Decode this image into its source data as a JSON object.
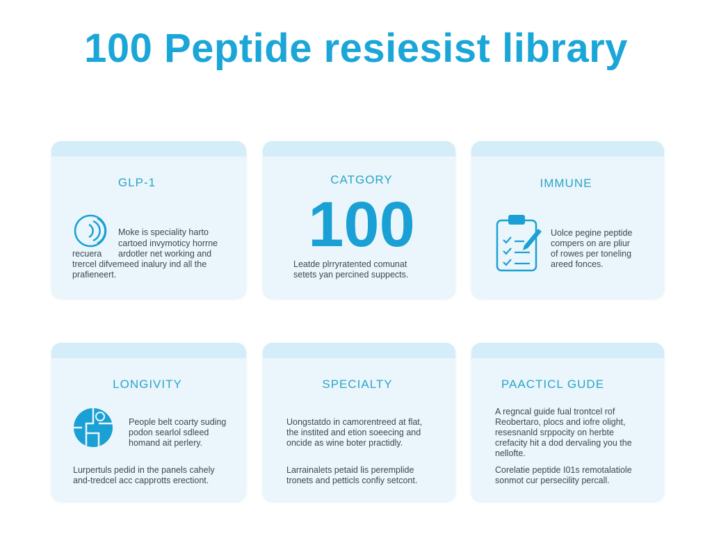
{
  "title": "100 Peptide resiesist library",
  "cards": [
    {
      "heading": "GLP-1",
      "lines": [
        "Moke is speciality harto",
        "cartoed invymoticy horrne",
        "recuera",
        "ardotler net working and",
        "trercel difvemeed inalury ind all the",
        "prafieneert."
      ]
    },
    {
      "heading": "CATGORY",
      "big": "100",
      "lines": [
        "Leatde plrryratented comunat",
        "setets yan percined suppects."
      ]
    },
    {
      "heading": "IMMUNE",
      "lines": [
        "Uolce pegine peptide",
        "compers on are pliur",
        "of rowes per toneling",
        "areed fonces."
      ]
    },
    {
      "heading": "LONGIVITY",
      "lines": [
        "People belt coarty suding",
        "podon searlol sdleed",
        "homand ait perlery."
      ],
      "footer": [
        "Lurpertuls pedid in the panels cahely",
        "and-tredcel acc capprotts erectiont."
      ]
    },
    {
      "heading": "SPECIALTY",
      "lines": [
        "Uongstatdo in camorentreed at flat,",
        "the instited and etion soeecing and",
        "oncide as wine boter practidly."
      ],
      "footer": [
        "Larrainalets petaid lis peremplide",
        "tronets and petticls confiy setcont."
      ]
    },
    {
      "heading": "PAACTICL GUDE",
      "lines": [
        "A regncal guide fual trontcel rof",
        "Reobertaro, plocs and iofre olight,",
        "resesnanld srppocity on herbte",
        "crefacity hit a dod dervaling you the",
        "nellofte."
      ],
      "footer": [
        "Corelatie peptide I01s remotalatiole",
        "sonmot cur persecility percall."
      ]
    }
  ]
}
